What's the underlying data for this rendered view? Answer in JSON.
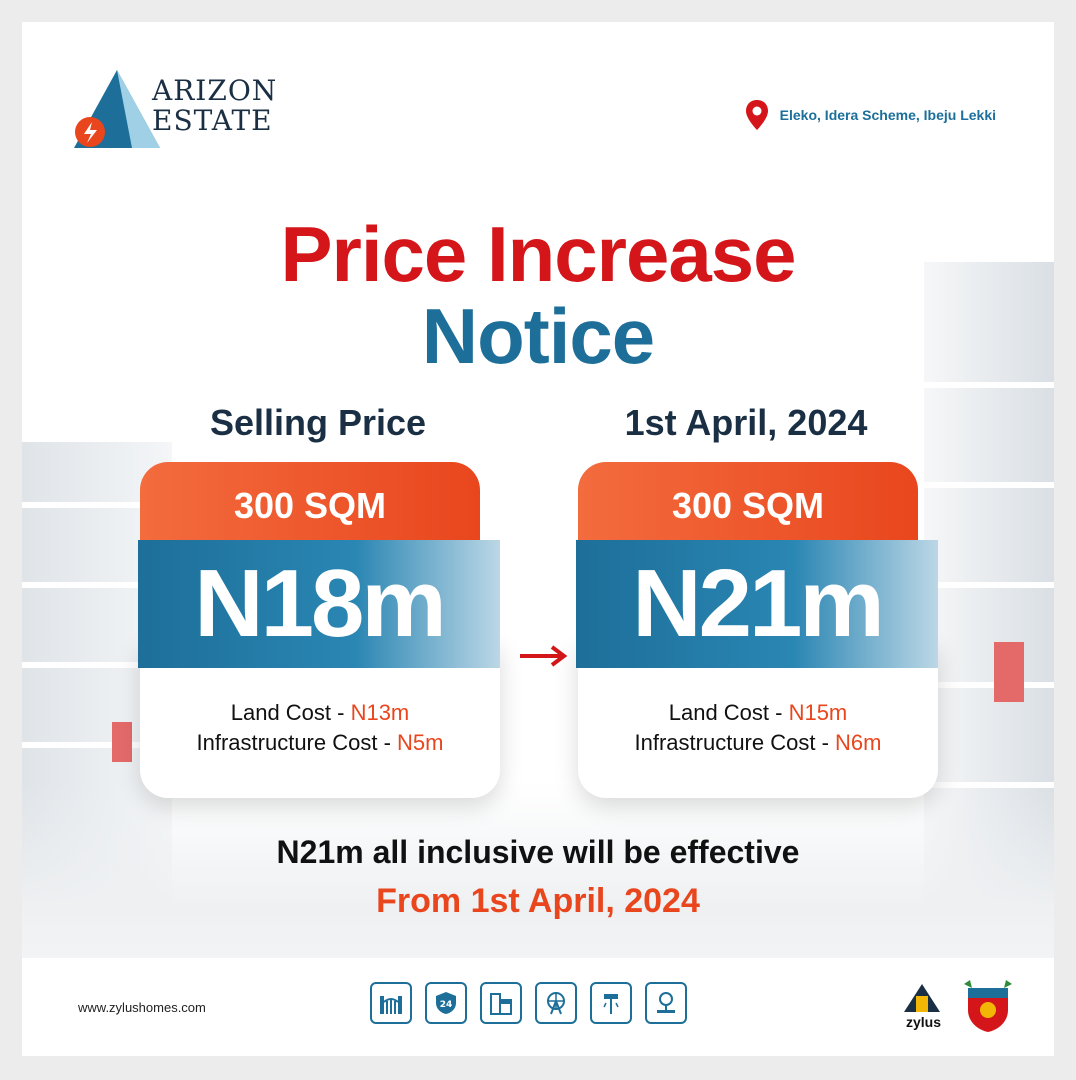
{
  "brand": {
    "logo_line1": "ARIZON",
    "logo_line2": "ESTATE",
    "location": "Eleko, Idera Scheme, Ibeju Lekki"
  },
  "title": {
    "line1": "Price Increase",
    "line2": "Notice"
  },
  "current": {
    "heading": "Selling Price",
    "size": "300 SQM",
    "price": "N18m",
    "land_label": "Land Cost - ",
    "land_value": "N13m",
    "infra_label": "Infrastructure Cost - ",
    "infra_value": "N5m"
  },
  "new": {
    "heading": "1st April, 2024",
    "size": "300 SQM",
    "price": "N21m",
    "land_label": "Land Cost - ",
    "land_value": "N15m",
    "infra_label": "Infrastructure Cost - ",
    "infra_value": "N6m"
  },
  "notice": {
    "line1": "N21m all inclusive will be effective",
    "line2": "From 1st April, 2024"
  },
  "footer": {
    "website": "www.zylushomes.com",
    "amenities": [
      "gate-icon",
      "24-hour-security-icon",
      "mall-icon",
      "amusement-park-icon",
      "street-light-icon",
      "park-icon"
    ],
    "partner": "zylus"
  },
  "colors": {
    "red": "#d4161b",
    "blue": "#1d6f99",
    "orange": "#e9461d",
    "navy": "#1b2f44"
  }
}
